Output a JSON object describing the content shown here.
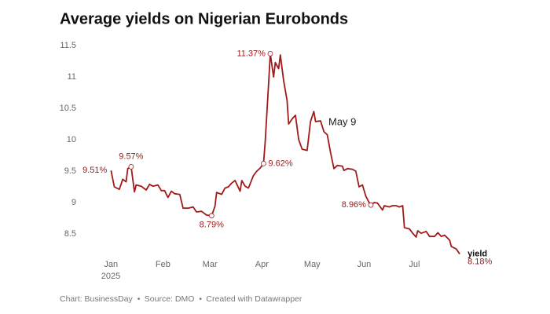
{
  "chart_data": {
    "type": "line",
    "title": "Average yields on Nigerian Eurobonds",
    "footer": [
      "Chart: BusinessDay",
      "Source: DMO",
      "Created with Datawrapper"
    ],
    "annotation": "May 9",
    "x_axis_year": "2025",
    "xlim": [
      -17,
      215
    ],
    "xticks": [
      {
        "value": 0,
        "label": "Jan"
      },
      {
        "value": 31,
        "label": "Feb"
      },
      {
        "value": 59,
        "label": "Mar"
      },
      {
        "value": 90,
        "label": "Apr"
      },
      {
        "value": 120,
        "label": "May"
      },
      {
        "value": 151,
        "label": "Jun"
      },
      {
        "value": 181,
        "label": "Jul"
      }
    ],
    "ylim": [
      8.2,
      11.5
    ],
    "yticks": [
      8.5,
      9,
      9.5,
      10,
      10.5,
      11,
      11.5
    ],
    "grid": false,
    "x": [
      0,
      2,
      5,
      7,
      9,
      10,
      12,
      14,
      15,
      18,
      21,
      23,
      25,
      28,
      30,
      32,
      34,
      36,
      38,
      41,
      43,
      46,
      49,
      51,
      54,
      57,
      60,
      62,
      63,
      66,
      68,
      70,
      72,
      74,
      77,
      78,
      80,
      82,
      85,
      87,
      89,
      91,
      92,
      94,
      95,
      97,
      98,
      100,
      101,
      103,
      105,
      106,
      108,
      110,
      112,
      114,
      117,
      119,
      121,
      122,
      125,
      127,
      129,
      131,
      133,
      135,
      138,
      139,
      141,
      144,
      146,
      148,
      150,
      152,
      154,
      155,
      157,
      159,
      162,
      163,
      166,
      168,
      170,
      172,
      174,
      175,
      178,
      180,
      182,
      183,
      185,
      188,
      190,
      193,
      195,
      197,
      199,
      202,
      203,
      206,
      208
    ],
    "series": [
      {
        "name": "yield",
        "color": "#a11a1a",
        "values": [
          9.51,
          9.25,
          9.21,
          9.37,
          9.33,
          9.54,
          9.57,
          9.17,
          9.28,
          9.26,
          9.2,
          9.29,
          9.26,
          9.28,
          9.19,
          9.19,
          9.08,
          9.18,
          9.14,
          9.13,
          8.91,
          8.91,
          8.93,
          8.85,
          8.86,
          8.8,
          8.79,
          8.94,
          9.16,
          9.13,
          9.23,
          9.25,
          9.31,
          9.35,
          9.18,
          9.35,
          9.26,
          9.23,
          9.43,
          9.5,
          9.55,
          9.62,
          9.98,
          10.88,
          11.37,
          11.0,
          11.23,
          11.13,
          11.35,
          10.94,
          10.63,
          10.25,
          10.33,
          10.39,
          10.0,
          9.85,
          9.83,
          10.29,
          10.45,
          10.29,
          10.3,
          10.13,
          10.08,
          9.79,
          9.54,
          9.59,
          9.58,
          9.51,
          9.54,
          9.53,
          9.5,
          9.25,
          9.28,
          9.1,
          9.0,
          8.96,
          9.0,
          8.99,
          8.88,
          8.95,
          8.93,
          8.95,
          8.95,
          8.93,
          8.95,
          8.6,
          8.58,
          8.51,
          8.45,
          8.55,
          8.51,
          8.54,
          8.46,
          8.46,
          8.52,
          8.46,
          8.48,
          8.4,
          8.3,
          8.26,
          8.18
        ],
        "value_labels": [
          "9.51%",
          null,
          null,
          null,
          null,
          null,
          "9.57%",
          null,
          null,
          null,
          null,
          null,
          null,
          null,
          null,
          null,
          null,
          null,
          null,
          null,
          null,
          null,
          null,
          null,
          null,
          null,
          "8.79%",
          null,
          null,
          null,
          null,
          null,
          null,
          null,
          null,
          null,
          null,
          null,
          null,
          null,
          null,
          "9.62%",
          null,
          null,
          "11.37%",
          null,
          null,
          null,
          null,
          null,
          null,
          null,
          null,
          null,
          null,
          null,
          null,
          null,
          null,
          null,
          null,
          null,
          null,
          null,
          null,
          null,
          null,
          null,
          null,
          null,
          null,
          null,
          null,
          null,
          null,
          "8.96%",
          null,
          null,
          null,
          null,
          null,
          null,
          null,
          null,
          null,
          null,
          null,
          null,
          null,
          null,
          null,
          null,
          null,
          null,
          null,
          null,
          null,
          null,
          null,
          null,
          "8.18%"
        ]
      }
    ]
  }
}
